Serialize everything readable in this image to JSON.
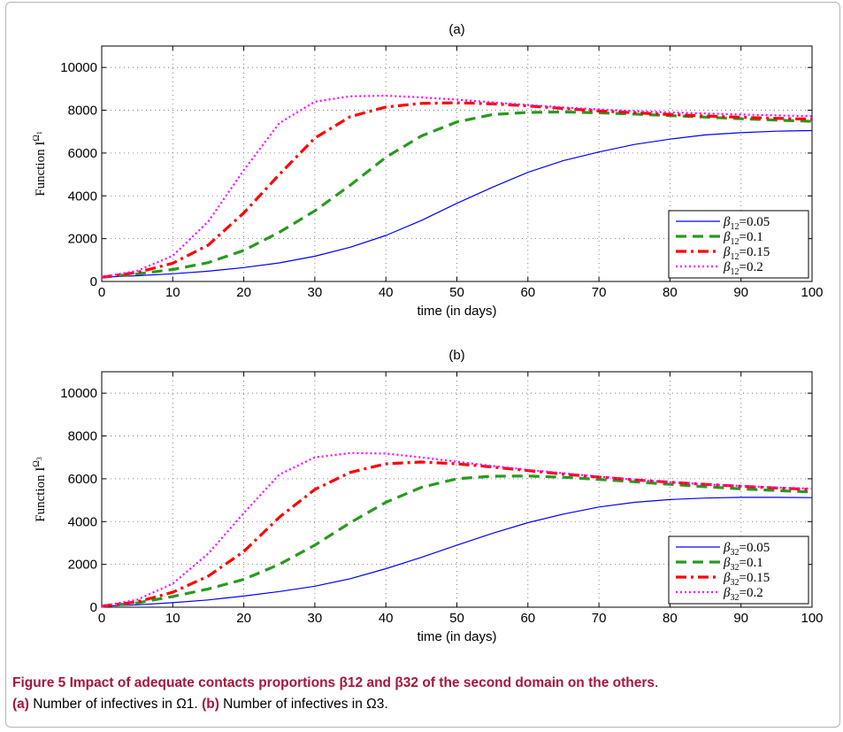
{
  "caption": {
    "title": "Figure 5  Impact of adequate contacts proportions β12 and β32 of the second domain on the others",
    "title_end": ".",
    "part_a_label": "(a)",
    "part_a_text": "Number of infectives in Ω1.",
    "part_b_label": "(b)",
    "part_b_text": "Number of infectives in Ω3."
  },
  "chart_data": [
    {
      "type": "line",
      "title": "(a)",
      "xlabel": "time (in days)",
      "ylabel": "Function I^Ω1",
      "ylabel_base": "Function I",
      "ylabel_sup": "Ω",
      "ylabel_sub": "1",
      "xlim": [
        0,
        100
      ],
      "ylim": [
        0,
        11000
      ],
      "xticks": [
        0,
        10,
        20,
        30,
        40,
        50,
        60,
        70,
        80,
        90,
        100
      ],
      "yticks": [
        0,
        2000,
        4000,
        6000,
        8000,
        10000
      ],
      "grid": true,
      "legend_position": "lower-right",
      "series": [
        {
          "name": "β12=0.05",
          "legend_param": "β",
          "legend_sub": "12",
          "legend_val": "=0.05",
          "color": "#0000ff",
          "style": "solid",
          "x": [
            0,
            5,
            10,
            15,
            20,
            25,
            30,
            35,
            40,
            45,
            50,
            55,
            60,
            65,
            70,
            75,
            80,
            85,
            90,
            95,
            100
          ],
          "values": [
            200,
            270,
            360,
            480,
            650,
            870,
            1180,
            1600,
            2150,
            2850,
            3650,
            4400,
            5100,
            5650,
            6050,
            6400,
            6650,
            6850,
            6950,
            7020,
            7050
          ]
        },
        {
          "name": "β12=0.1",
          "legend_param": "β",
          "legend_sub": "12",
          "legend_val": "=0.1",
          "color": "#279a1e",
          "style": "dashed",
          "x": [
            0,
            5,
            10,
            15,
            20,
            25,
            30,
            35,
            40,
            45,
            50,
            55,
            60,
            65,
            70,
            75,
            80,
            85,
            90,
            95,
            100
          ],
          "values": [
            200,
            350,
            560,
            880,
            1450,
            2300,
            3300,
            4500,
            5800,
            6800,
            7450,
            7800,
            7900,
            7920,
            7880,
            7820,
            7750,
            7680,
            7600,
            7540,
            7480
          ]
        },
        {
          "name": "β12=0.15",
          "legend_param": "β",
          "legend_sub": "12",
          "legend_val": "=0.15",
          "color": "#ff0000",
          "style": "dashdot",
          "x": [
            0,
            5,
            10,
            15,
            20,
            25,
            30,
            35,
            40,
            45,
            50,
            55,
            60,
            65,
            70,
            75,
            80,
            85,
            90,
            95,
            100
          ],
          "values": [
            200,
            420,
            850,
            1700,
            3200,
            5000,
            6700,
            7700,
            8150,
            8320,
            8350,
            8300,
            8200,
            8080,
            7970,
            7880,
            7800,
            7730,
            7670,
            7620,
            7580
          ]
        },
        {
          "name": "β12=0.2",
          "legend_param": "β",
          "legend_sub": "12",
          "legend_val": "=0.2",
          "color": "#ff00ff",
          "style": "dotted",
          "x": [
            0,
            5,
            10,
            15,
            20,
            25,
            30,
            35,
            40,
            45,
            50,
            55,
            60,
            65,
            70,
            75,
            80,
            85,
            90,
            95,
            100
          ],
          "values": [
            200,
            500,
            1200,
            2800,
            5200,
            7400,
            8400,
            8650,
            8680,
            8600,
            8500,
            8370,
            8240,
            8130,
            8040,
            7960,
            7900,
            7850,
            7800,
            7760,
            7720
          ]
        }
      ]
    },
    {
      "type": "line",
      "title": "(b)",
      "xlabel": "time (in days)",
      "ylabel": "Function I^Ω3",
      "ylabel_base": "Function I",
      "ylabel_sup": "Ω",
      "ylabel_sub": "3",
      "xlim": [
        0,
        100
      ],
      "ylim": [
        0,
        11000
      ],
      "xticks": [
        0,
        10,
        20,
        30,
        40,
        50,
        60,
        70,
        80,
        90,
        100
      ],
      "yticks": [
        0,
        2000,
        4000,
        6000,
        8000,
        10000
      ],
      "grid": true,
      "legend_position": "lower-right",
      "series": [
        {
          "name": "β32=0.05",
          "legend_param": "β",
          "legend_sub": "32",
          "legend_val": "=0.05",
          "color": "#0000ff",
          "style": "solid",
          "x": [
            0,
            5,
            10,
            15,
            20,
            25,
            30,
            35,
            40,
            45,
            50,
            55,
            60,
            65,
            70,
            75,
            80,
            85,
            90,
            95,
            100
          ],
          "values": [
            50,
            110,
            210,
            340,
            520,
            730,
            980,
            1330,
            1800,
            2330,
            2900,
            3450,
            3950,
            4350,
            4680,
            4900,
            5030,
            5100,
            5130,
            5130,
            5120
          ]
        },
        {
          "name": "β32=0.1",
          "legend_param": "β",
          "legend_sub": "32",
          "legend_val": "=0.1",
          "color": "#279a1e",
          "style": "dashed",
          "x": [
            0,
            5,
            10,
            15,
            20,
            25,
            30,
            35,
            40,
            45,
            50,
            55,
            60,
            65,
            70,
            75,
            80,
            85,
            90,
            95,
            100
          ],
          "values": [
            50,
            200,
            500,
            850,
            1300,
            2000,
            2900,
            3950,
            4900,
            5600,
            6000,
            6120,
            6130,
            6070,
            5970,
            5860,
            5740,
            5630,
            5530,
            5450,
            5380
          ]
        },
        {
          "name": "β32=0.15",
          "legend_param": "β",
          "legend_sub": "32",
          "legend_val": "=0.15",
          "color": "#ff0000",
          "style": "dashdot",
          "x": [
            0,
            5,
            10,
            15,
            20,
            25,
            30,
            35,
            40,
            45,
            50,
            55,
            60,
            65,
            70,
            75,
            80,
            85,
            90,
            95,
            100
          ],
          "values": [
            50,
            250,
            700,
            1450,
            2600,
            4200,
            5500,
            6300,
            6700,
            6780,
            6700,
            6550,
            6380,
            6220,
            6080,
            5950,
            5840,
            5740,
            5650,
            5570,
            5500
          ]
        },
        {
          "name": "β32=0.2",
          "legend_param": "β",
          "legend_sub": "32",
          "legend_val": "=0.2",
          "color": "#ff00ff",
          "style": "dotted",
          "x": [
            0,
            5,
            10,
            15,
            20,
            25,
            30,
            35,
            40,
            45,
            50,
            55,
            60,
            65,
            70,
            75,
            80,
            85,
            90,
            95,
            100
          ],
          "values": [
            50,
            350,
            1100,
            2500,
            4400,
            6200,
            7000,
            7200,
            7180,
            7000,
            6800,
            6600,
            6420,
            6260,
            6100,
            5960,
            5840,
            5740,
            5660,
            5590,
            5540
          ]
        }
      ]
    }
  ]
}
